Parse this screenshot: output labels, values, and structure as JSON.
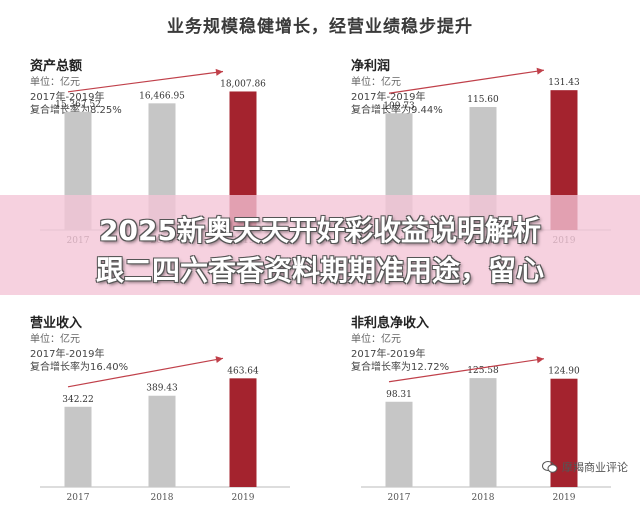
{
  "page": {
    "title": "业务规模稳健增长，经营业绩稳步提升"
  },
  "overlay": {
    "line1": "2025新奥天天开好彩收益说明解析",
    "line2": "跟二四六香香资料期期准用途，留心"
  },
  "watermark": {
    "text": "摩羯商业评论",
    "icon": "wechat-icon"
  },
  "colors": {
    "gray_bar": "#c6c6c6",
    "red_bar": "#a4232e",
    "arrow": "#c0404a",
    "axis": "#bbbbbb"
  },
  "chart_data": [
    {
      "type": "bar",
      "title": "资产总额",
      "unit": "单位：亿元",
      "period": "2017年-2019年",
      "growth": "复合增长率为8.25%",
      "categories": [
        "2017",
        "2018",
        "2019"
      ],
      "values": [
        15367.52,
        16466.95,
        18007.86
      ],
      "labels": [
        "15,367.52",
        "16,466.95",
        "18,007.86"
      ],
      "ylim": [
        0,
        19500
      ]
    },
    {
      "type": "bar",
      "title": "净利润",
      "unit": "单位：亿元",
      "period": "2017年-2019年",
      "growth": "复合增长率为9.44%",
      "categories": [
        "2017",
        "2018",
        "2019"
      ],
      "values": [
        109.73,
        115.6,
        131.43
      ],
      "labels": [
        "109.73",
        "115.60",
        "131.43"
      ],
      "ylim": [
        0,
        141
      ]
    },
    {
      "type": "bar",
      "title": "营业收入",
      "unit": "单位：亿元",
      "period": "2017年-2019年",
      "growth": "复合增长率为16.40%",
      "categories": [
        "2017",
        "2018",
        "2019"
      ],
      "values": [
        342.22,
        389.43,
        463.64
      ],
      "labels": [
        "342.22",
        "389.43",
        "463.64"
      ],
      "ylim": [
        0,
        640
      ]
    },
    {
      "type": "bar",
      "title": "非利息净收入",
      "unit": "单位：亿元",
      "period": "2017年-2019年",
      "growth": "复合增长率为12.72%",
      "categories": [
        "2017",
        "2018",
        "2019"
      ],
      "values": [
        98.31,
        125.58,
        124.9
      ],
      "labels": [
        "98.31",
        "125.58",
        "124.90"
      ],
      "ylim": [
        0,
        173
      ]
    }
  ]
}
